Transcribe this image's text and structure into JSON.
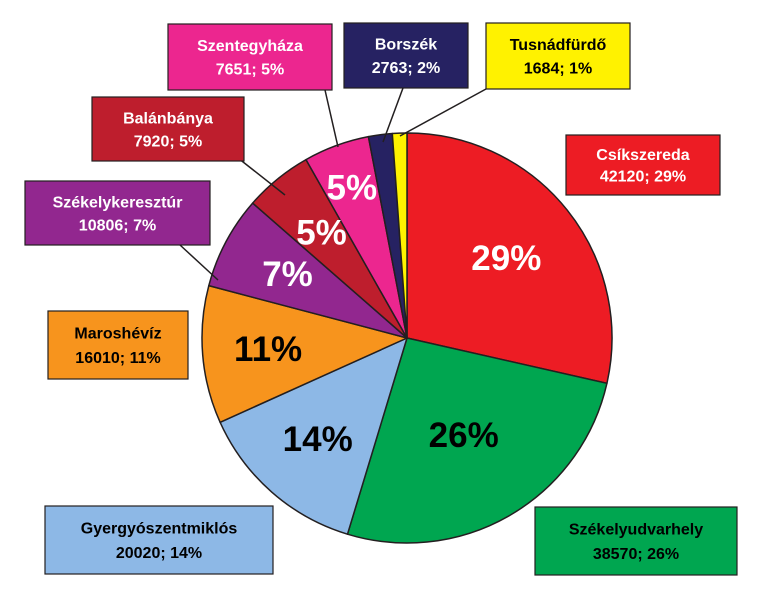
{
  "chart_data": {
    "type": "pie",
    "slices": [
      {
        "name": "Csíkszereda",
        "value": 42120,
        "percent_label": "29%",
        "value_label": "42120; 29%",
        "color": "#ed1c24",
        "text_color": "#ffffff",
        "box_text_color": "#ffffff"
      },
      {
        "name": "Székelyudvarhely",
        "value": 38570,
        "percent_label": "26%",
        "value_label": "38570; 26%",
        "color": "#00a650",
        "text_color": "#000000",
        "box_text_color": "#000000"
      },
      {
        "name": "Gyergyószentmiklós",
        "value": 20020,
        "percent_label": "14%",
        "value_label": "20020; 14%",
        "color": "#8db8e6",
        "text_color": "#000000",
        "box_text_color": "#000000"
      },
      {
        "name": "Maroshévíz",
        "value": 16010,
        "percent_label": "11%",
        "value_label": "16010; 11%",
        "color": "#f7941d",
        "text_color": "#000000",
        "box_text_color": "#000000"
      },
      {
        "name": "Székelykeresztúr",
        "value": 10806,
        "percent_label": "7%",
        "value_label": "10806; 7%",
        "color": "#92278f",
        "text_color": "#ffffff",
        "box_text_color": "#ffffff"
      },
      {
        "name": "Balánbánya",
        "value": 7920,
        "percent_label": "5%",
        "value_label": "7920; 5%",
        "color": "#be1e2d",
        "text_color": "#ffffff",
        "box_text_color": "#ffffff"
      },
      {
        "name": "Szentegyháza",
        "value": 7651,
        "percent_label": "5%",
        "value_label": "7651; 5%",
        "color": "#ec268f",
        "text_color": "#ffffff",
        "box_text_color": "#ffffff"
      },
      {
        "name": "Borszék",
        "value": 2763,
        "percent_label": "",
        "value_label": "2763; 2%",
        "color": "#262262",
        "text_color": "#ffffff",
        "box_text_color": "#ffffff"
      },
      {
        "name": "Tusnádfürdő",
        "value": 1684,
        "percent_label": "",
        "value_label": "1684; 1%",
        "color": "#fff200",
        "text_color": "#000000",
        "box_text_color": "#000000"
      }
    ],
    "start_angle_deg": 0,
    "direction": "clockwise",
    "legend": "callout boxes around the pie"
  }
}
